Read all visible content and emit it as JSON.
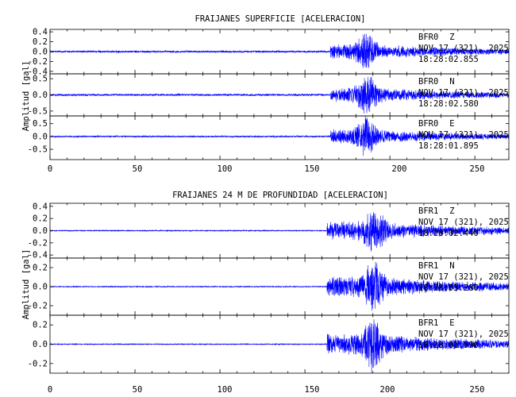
{
  "colors": {
    "trace": "#0000ff",
    "axis": "#000000",
    "background": "#ffffff"
  },
  "chart_data": [
    {
      "type": "line",
      "title": "FRAIJANES SUPERFICIE [ACELERACION]",
      "ylabel": "Amplitud [gal]",
      "xlim": [
        0,
        270
      ],
      "xticks": [
        "0",
        "50",
        "100",
        "150",
        "200",
        "250"
      ],
      "panels": [
        {
          "station": "BFR0",
          "component": "Z",
          "date": "NOV 17 (321), 2025",
          "time": "18:28:02.855",
          "ylim": [
            -0.45,
            0.45
          ],
          "yticks": [
            0.4,
            0.2,
            0.0,
            -0.2,
            -0.4
          ],
          "ytick_labels": [
            "0.4",
            "0.2",
            "0.0",
            "-0.2",
            "-0.4"
          ],
          "noise_level": 0.02,
          "peak_amplitude": 0.4,
          "signal_onset": 165,
          "peak_time": 186
        },
        {
          "station": "BFR0",
          "component": "N",
          "date": "NOV 17 (321), 2025",
          "time": "18:28:02.580",
          "ylim": [
            -0.65,
            0.65
          ],
          "yticks": [
            0.5,
            0.0,
            -0.5
          ],
          "ytick_labels": [
            "0.5",
            "0.0",
            "-0.5"
          ],
          "noise_level": 0.03,
          "peak_amplitude": 0.6,
          "signal_onset": 165,
          "peak_time": 187
        },
        {
          "station": "BFR0",
          "component": "E",
          "date": "NOV 17 (321), 2025",
          "time": "18:28:01.895",
          "ylim": [
            -0.9,
            0.8
          ],
          "yticks": [
            0.5,
            0.0,
            -0.5
          ],
          "ytick_labels": [
            "0.5",
            "0.0",
            "-0.5"
          ],
          "noise_level": 0.03,
          "peak_amplitude": 0.75,
          "signal_onset": 165,
          "peak_time": 186
        }
      ]
    },
    {
      "type": "line",
      "title": "FRAIJANES 24 M DE PROFUNDIDAD [ACELERACION]",
      "ylabel": "Amplitud [gal]",
      "xlim": [
        0,
        270
      ],
      "xticks": [
        "0",
        "50",
        "100",
        "150",
        "200",
        "250"
      ],
      "panels": [
        {
          "station": "BFR1",
          "component": "Z",
          "date": "NOV 17 (321), 2025",
          "time": "18:28:02.440",
          "ylim": [
            -0.45,
            0.45
          ],
          "yticks": [
            0.4,
            0.2,
            0.0,
            -0.2,
            -0.4
          ],
          "ytick_labels": [
            "0.4",
            "0.2",
            "0.0",
            "-0.2",
            "-0.4"
          ],
          "noise_level": 0.008,
          "peak_amplitude": 0.4,
          "signal_onset": 163,
          "peak_time": 191
        },
        {
          "station": "BFR1",
          "component": "N",
          "date": "NOV 17 (321), 2025",
          "time": "18:28:03.280",
          "ylim": [
            -0.3,
            0.3
          ],
          "yticks": [
            0.2,
            0.0,
            -0.2
          ],
          "ytick_labels": [
            "0.2",
            "0.0",
            "-0.2"
          ],
          "noise_level": 0.005,
          "peak_amplitude": 0.28,
          "signal_onset": 163,
          "peak_time": 191
        },
        {
          "station": "BFR1",
          "component": "E",
          "date": "NOV 17 (321), 2025",
          "time": "18:28:01.590",
          "ylim": [
            -0.3,
            0.3
          ],
          "yticks": [
            0.2,
            0.0,
            -0.2
          ],
          "ytick_labels": [
            "0.2",
            "0.0",
            "-0.2"
          ],
          "noise_level": 0.005,
          "peak_amplitude": 0.28,
          "signal_onset": 163,
          "peak_time": 190
        }
      ]
    }
  ]
}
